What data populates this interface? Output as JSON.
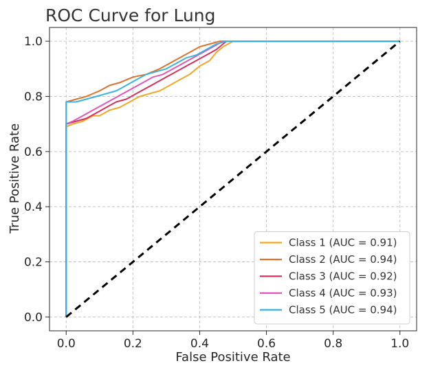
{
  "chart_data": {
    "type": "line",
    "title": "ROC Curve for Lung",
    "xlabel": "False Positive Rate",
    "ylabel": "True Positive Rate",
    "xlim": [
      -0.05,
      1.05
    ],
    "ylim": [
      -0.05,
      1.05
    ],
    "x_ticks": [
      "0.0",
      "0.2",
      "0.4",
      "0.6",
      "0.8",
      "1.0"
    ],
    "y_ticks": [
      "0.0",
      "0.2",
      "0.4",
      "0.6",
      "0.8",
      "1.0"
    ],
    "grid": true,
    "legend_position": "lower-right",
    "series": [
      {
        "name": "Class 1 (AUC = 0.91)",
        "color": "#f5a623",
        "x": [
          0,
          0,
          0.0,
          0.02,
          0.05,
          0.08,
          0.1,
          0.13,
          0.16,
          0.19,
          0.22,
          0.25,
          0.28,
          0.31,
          0.34,
          0.37,
          0.4,
          0.43,
          0.45,
          0.47,
          0.5,
          1.0
        ],
        "y": [
          0,
          0.69,
          0.69,
          0.7,
          0.71,
          0.73,
          0.73,
          0.75,
          0.76,
          0.78,
          0.8,
          0.81,
          0.82,
          0.84,
          0.86,
          0.88,
          0.91,
          0.93,
          0.96,
          0.98,
          1.0,
          1.0
        ]
      },
      {
        "name": "Class 2 (AUC = 0.94)",
        "color": "#e0702a",
        "x": [
          0,
          0,
          0.0,
          0.03,
          0.06,
          0.1,
          0.13,
          0.16,
          0.2,
          0.24,
          0.28,
          0.31,
          0.34,
          0.37,
          0.4,
          0.43,
          0.46,
          1.0
        ],
        "y": [
          0,
          0.78,
          0.78,
          0.79,
          0.8,
          0.82,
          0.84,
          0.85,
          0.87,
          0.88,
          0.9,
          0.92,
          0.94,
          0.96,
          0.98,
          0.99,
          1.0,
          1.0
        ]
      },
      {
        "name": "Class 3 (AUC = 0.92)",
        "color": "#d6305a",
        "x": [
          0,
          0,
          0.0,
          0.03,
          0.06,
          0.09,
          0.12,
          0.15,
          0.18,
          0.21,
          0.24,
          0.27,
          0.3,
          0.33,
          0.36,
          0.39,
          0.42,
          0.45,
          0.48,
          1.0
        ],
        "y": [
          0,
          0.7,
          0.7,
          0.71,
          0.72,
          0.74,
          0.76,
          0.78,
          0.79,
          0.81,
          0.83,
          0.85,
          0.87,
          0.89,
          0.91,
          0.93,
          0.95,
          0.97,
          1.0,
          1.0
        ]
      },
      {
        "name": "Class 4 (AUC = 0.93)",
        "color": "#e454b8",
        "x": [
          0,
          0,
          0.0,
          0.02,
          0.05,
          0.08,
          0.11,
          0.14,
          0.17,
          0.2,
          0.23,
          0.26,
          0.29,
          0.32,
          0.35,
          0.38,
          0.41,
          0.44,
          0.47,
          1.0
        ],
        "y": [
          0,
          0.7,
          0.7,
          0.71,
          0.73,
          0.75,
          0.77,
          0.79,
          0.81,
          0.83,
          0.85,
          0.87,
          0.88,
          0.9,
          0.92,
          0.94,
          0.96,
          0.98,
          1.0,
          1.0
        ]
      },
      {
        "name": "Class 5 (AUC = 0.94)",
        "color": "#38b2e4",
        "x": [
          0,
          0,
          0.0,
          0.03,
          0.06,
          0.09,
          0.12,
          0.15,
          0.18,
          0.21,
          0.24,
          0.27,
          0.3,
          0.33,
          0.36,
          0.39,
          0.42,
          0.45,
          0.48,
          1.0
        ],
        "y": [
          0,
          0.78,
          0.78,
          0.78,
          0.79,
          0.8,
          0.81,
          0.82,
          0.84,
          0.86,
          0.88,
          0.89,
          0.9,
          0.92,
          0.94,
          0.95,
          0.97,
          0.99,
          1.0,
          1.0
        ]
      }
    ],
    "reference_line": {
      "x": [
        0,
        1
      ],
      "y": [
        0,
        1
      ],
      "color": "#000000",
      "style": "dashed"
    }
  }
}
